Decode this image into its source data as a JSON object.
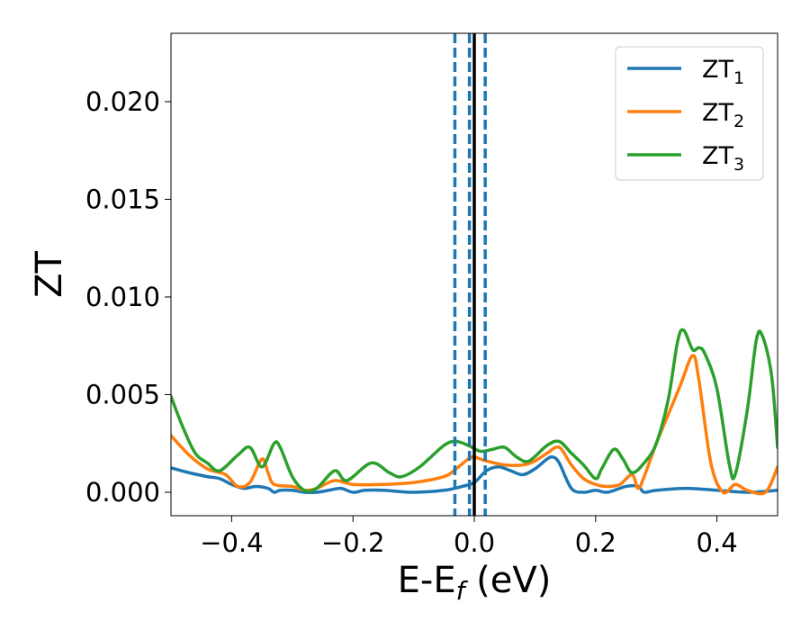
{
  "chart_data": {
    "type": "line",
    "title": "",
    "xlabel_main": "E-E",
    "xlabel_sub": "f",
    "xlabel_unit": " (eV)",
    "ylabel": "ZT",
    "xlim": [
      -0.5,
      0.5
    ],
    "ylim": [
      -0.0012,
      0.0235
    ],
    "xticks": [
      -0.4,
      -0.2,
      0.0,
      0.2,
      0.4
    ],
    "xtick_labels": [
      "−0.4",
      "−0.2",
      "0.0",
      "0.2",
      "0.4"
    ],
    "yticks": [
      0.0,
      0.005,
      0.01,
      0.015,
      0.02
    ],
    "ytick_labels": [
      "0.000",
      "0.005",
      "0.010",
      "0.015",
      "0.020"
    ],
    "grid": false,
    "legend_position": "top-right",
    "series": [
      {
        "name_main": "ZT",
        "name_sub": "1",
        "color": "#1f77b4",
        "points": [
          [
            -0.5,
            0.00125
          ],
          [
            -0.47,
            0.001
          ],
          [
            -0.44,
            0.0008
          ],
          [
            -0.42,
            0.0007
          ],
          [
            -0.4,
            0.0004
          ],
          [
            -0.38,
            0.0002
          ],
          [
            -0.36,
            0.0003
          ],
          [
            -0.34,
            0.0002
          ],
          [
            -0.33,
            0.0
          ],
          [
            -0.32,
            0.0001
          ],
          [
            -0.3,
            0.0001
          ],
          [
            -0.28,
            0.0
          ],
          [
            -0.26,
            0.0
          ],
          [
            -0.24,
            0.0001
          ],
          [
            -0.22,
            0.0002
          ],
          [
            -0.2,
            0.0
          ],
          [
            -0.18,
            0.0001
          ],
          [
            -0.15,
            0.0001
          ],
          [
            -0.1,
            0.0
          ],
          [
            -0.05,
            0.0001
          ],
          [
            -0.02,
            0.0003
          ],
          [
            0.0,
            0.0005
          ],
          [
            0.02,
            0.0011
          ],
          [
            0.04,
            0.0013
          ],
          [
            0.06,
            0.0011
          ],
          [
            0.08,
            0.0009
          ],
          [
            0.1,
            0.0012
          ],
          [
            0.12,
            0.0017
          ],
          [
            0.13,
            0.0018
          ],
          [
            0.14,
            0.0015
          ],
          [
            0.16,
            0.0002
          ],
          [
            0.18,
            0.0
          ],
          [
            0.2,
            0.0001
          ],
          [
            0.22,
            0.0
          ],
          [
            0.25,
            0.0003
          ],
          [
            0.27,
            0.0003
          ],
          [
            0.28,
            0.0
          ],
          [
            0.3,
            0.0001
          ],
          [
            0.35,
            0.0002
          ],
          [
            0.4,
            0.0001
          ],
          [
            0.45,
            0.0
          ],
          [
            0.5,
            0.0001
          ]
        ]
      },
      {
        "name_main": "ZT",
        "name_sub": "2",
        "color": "#ff7f0e",
        "points": [
          [
            -0.5,
            0.0029
          ],
          [
            -0.47,
            0.0019
          ],
          [
            -0.44,
            0.0012
          ],
          [
            -0.41,
            0.0009
          ],
          [
            -0.39,
            0.0003
          ],
          [
            -0.37,
            0.0005
          ],
          [
            -0.35,
            0.0017
          ],
          [
            -0.34,
            0.001
          ],
          [
            -0.33,
            0.0004
          ],
          [
            -0.3,
            0.0003
          ],
          [
            -0.28,
            0.0001
          ],
          [
            -0.26,
            0.0002
          ],
          [
            -0.23,
            0.0006
          ],
          [
            -0.2,
            0.0004
          ],
          [
            -0.15,
            0.0004
          ],
          [
            -0.1,
            0.0005
          ],
          [
            -0.05,
            0.0008
          ],
          [
            -0.03,
            0.0012
          ],
          [
            -0.01,
            0.0017
          ],
          [
            0.0,
            0.0018
          ],
          [
            0.02,
            0.0016
          ],
          [
            0.05,
            0.0014
          ],
          [
            0.08,
            0.0014
          ],
          [
            0.1,
            0.0016
          ],
          [
            0.12,
            0.002
          ],
          [
            0.14,
            0.0023
          ],
          [
            0.16,
            0.0014
          ],
          [
            0.18,
            0.0007
          ],
          [
            0.2,
            0.0004
          ],
          [
            0.22,
            0.0003
          ],
          [
            0.24,
            0.0004
          ],
          [
            0.26,
            0.0009
          ],
          [
            0.27,
            0.0002
          ],
          [
            0.28,
            0.0008
          ],
          [
            0.3,
            0.0025
          ],
          [
            0.32,
            0.004
          ],
          [
            0.34,
            0.0055
          ],
          [
            0.36,
            0.007
          ],
          [
            0.37,
            0.0058
          ],
          [
            0.39,
            0.0015
          ],
          [
            0.41,
            0.0
          ],
          [
            0.43,
            0.0004
          ],
          [
            0.45,
            0.0001
          ],
          [
            0.48,
            0.0
          ],
          [
            0.5,
            0.0013
          ]
        ]
      },
      {
        "name_main": "ZT",
        "name_sub": "3",
        "color": "#2ca02c",
        "points": [
          [
            -0.5,
            0.0049
          ],
          [
            -0.48,
            0.0033
          ],
          [
            -0.46,
            0.002
          ],
          [
            -0.44,
            0.0015
          ],
          [
            -0.42,
            0.0011
          ],
          [
            -0.39,
            0.0019
          ],
          [
            -0.37,
            0.0023
          ],
          [
            -0.35,
            0.0013
          ],
          [
            -0.33,
            0.0025
          ],
          [
            -0.32,
            0.0023
          ],
          [
            -0.3,
            0.0008
          ],
          [
            -0.28,
            0.0001
          ],
          [
            -0.26,
            0.0002
          ],
          [
            -0.23,
            0.0011
          ],
          [
            -0.21,
            0.0006
          ],
          [
            -0.17,
            0.0015
          ],
          [
            -0.14,
            0.001
          ],
          [
            -0.12,
            0.0008
          ],
          [
            -0.09,
            0.0013
          ],
          [
            -0.05,
            0.0024
          ],
          [
            -0.03,
            0.0026
          ],
          [
            -0.01,
            0.0024
          ],
          [
            0.01,
            0.0021
          ],
          [
            0.03,
            0.0022
          ],
          [
            0.05,
            0.0023
          ],
          [
            0.07,
            0.0018
          ],
          [
            0.09,
            0.0016
          ],
          [
            0.12,
            0.0024
          ],
          [
            0.14,
            0.0026
          ],
          [
            0.16,
            0.002
          ],
          [
            0.18,
            0.0014
          ],
          [
            0.2,
            0.0007
          ],
          [
            0.21,
            0.0012
          ],
          [
            0.23,
            0.0022
          ],
          [
            0.245,
            0.0017
          ],
          [
            0.26,
            0.001
          ],
          [
            0.28,
            0.0015
          ],
          [
            0.3,
            0.0025
          ],
          [
            0.32,
            0.0048
          ],
          [
            0.335,
            0.0077
          ],
          [
            0.345,
            0.0083
          ],
          [
            0.36,
            0.0073
          ],
          [
            0.37,
            0.0074
          ],
          [
            0.38,
            0.0071
          ],
          [
            0.4,
            0.0053
          ],
          [
            0.42,
            0.0015
          ],
          [
            0.43,
            0.0009
          ],
          [
            0.45,
            0.0042
          ],
          [
            0.465,
            0.0078
          ],
          [
            0.475,
            0.008
          ],
          [
            0.49,
            0.006
          ],
          [
            0.5,
            0.0023
          ]
        ]
      }
    ],
    "vlines": [
      {
        "x": -0.032,
        "style": "dashed",
        "color": "#1f77b4"
      },
      {
        "x": -0.008,
        "style": "dashed",
        "color": "#1f77b4"
      },
      {
        "x": 0.018,
        "style": "dashed",
        "color": "#1f77b4"
      },
      {
        "x": 0.0,
        "style": "solid",
        "color": "#000000"
      }
    ]
  }
}
